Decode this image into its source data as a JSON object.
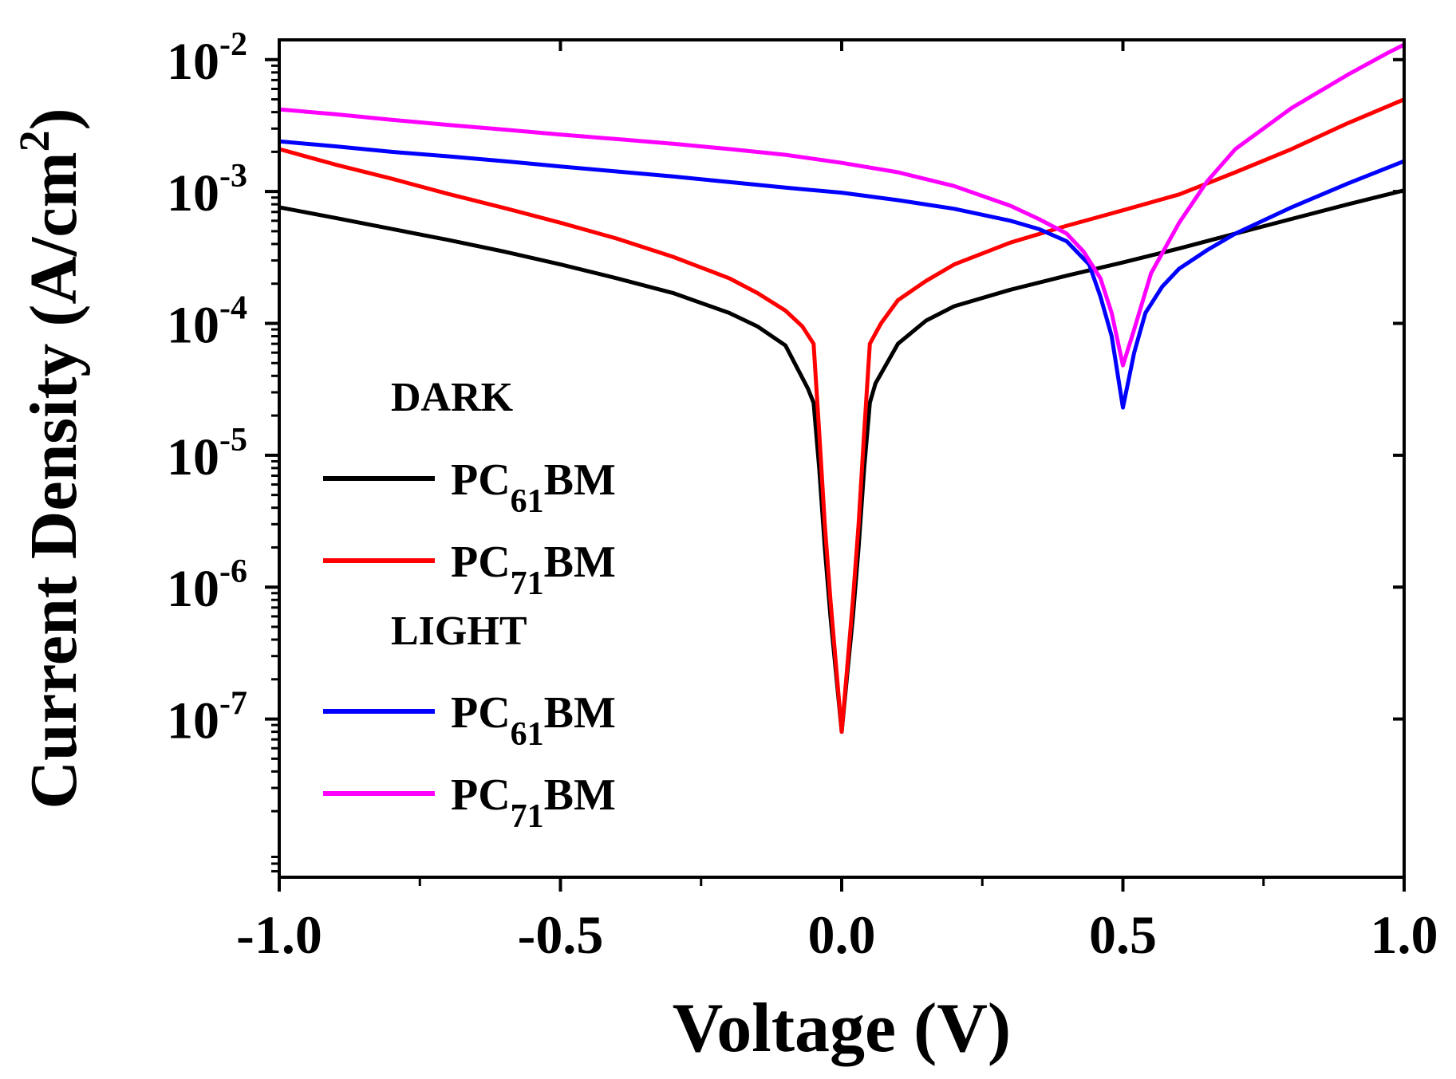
{
  "chart_data": {
    "type": "line",
    "xlabel": "Voltage (V)",
    "ylabel": {
      "prefix": "Current Density (A/cm",
      "sup": "2",
      "suffix": ")"
    },
    "y_scale": "log",
    "xlim": [
      -1.0,
      1.0
    ],
    "ylim_log10": [
      -8.2,
      -1.85
    ],
    "grid": false,
    "legend_position": "center-left",
    "x_ticks": [
      {
        "value": -1.0,
        "label": "-1.0"
      },
      {
        "value": -0.5,
        "label": "-0.5"
      },
      {
        "value": 0.0,
        "label": "0.0"
      },
      {
        "value": 0.5,
        "label": "0.5"
      },
      {
        "value": 1.0,
        "label": "1.0"
      }
    ],
    "y_ticks": [
      {
        "exp": -2,
        "base": "10",
        "sup": "-2"
      },
      {
        "exp": -3,
        "base": "10",
        "sup": "-3"
      },
      {
        "exp": -4,
        "base": "10",
        "sup": "-4"
      },
      {
        "exp": -5,
        "base": "10",
        "sup": "-5"
      },
      {
        "exp": -6,
        "base": "10",
        "sup": "-6"
      },
      {
        "exp": -7,
        "base": "10",
        "sup": "-7"
      }
    ],
    "legend": {
      "groups": [
        {
          "heading": "DARK",
          "items": [
            {
              "series": 0,
              "prefix": "PC",
              "sub": "61",
              "suffix": "BM"
            },
            {
              "series": 1,
              "prefix": "PC",
              "sub": "71",
              "suffix": "BM"
            }
          ]
        },
        {
          "heading": "LIGHT",
          "items": [
            {
              "series": 2,
              "prefix": "PC",
              "sub": "61",
              "suffix": "BM"
            },
            {
              "series": 3,
              "prefix": "PC",
              "sub": "71",
              "suffix": "BM"
            }
          ]
        }
      ]
    },
    "series": [
      {
        "color": "#000000",
        "points": [
          [
            -1.0,
            0.00076
          ],
          [
            -0.9,
            0.00063
          ],
          [
            -0.8,
            0.00052
          ],
          [
            -0.7,
            0.00043
          ],
          [
            -0.6,
            0.00035
          ],
          [
            -0.5,
            0.00028
          ],
          [
            -0.4,
            0.00022
          ],
          [
            -0.3,
            0.00017
          ],
          [
            -0.2,
            0.00012
          ],
          [
            -0.15,
            9.5e-05
          ],
          [
            -0.1,
            6.8e-05
          ],
          [
            -0.06,
            3.2e-05
          ],
          [
            -0.05,
            2.5e-05
          ],
          [
            -0.04,
            8e-06
          ],
          [
            -0.03,
            2e-06
          ],
          [
            -0.02,
            6e-07
          ],
          [
            -0.01,
            2.2e-07
          ],
          [
            0.0,
            8e-08
          ],
          [
            0.01,
            2.2e-07
          ],
          [
            0.02,
            6e-07
          ],
          [
            0.03,
            2e-06
          ],
          [
            0.04,
            8e-06
          ],
          [
            0.05,
            2.5e-05
          ],
          [
            0.06,
            3.5e-05
          ],
          [
            0.1,
            7e-05
          ],
          [
            0.15,
            0.000105
          ],
          [
            0.2,
            0.000135
          ],
          [
            0.3,
            0.00018
          ],
          [
            0.4,
            0.00023
          ],
          [
            0.5,
            0.00029
          ],
          [
            0.6,
            0.00037
          ],
          [
            0.7,
            0.00048
          ],
          [
            0.8,
            0.00062
          ],
          [
            0.9,
            0.0008
          ],
          [
            1.0,
            0.00102
          ]
        ]
      },
      {
        "color": "#ff0000",
        "points": [
          [
            -1.0,
            0.0021
          ],
          [
            -0.9,
            0.0016
          ],
          [
            -0.8,
            0.00125
          ],
          [
            -0.7,
            0.00096
          ],
          [
            -0.6,
            0.00075
          ],
          [
            -0.5,
            0.00058
          ],
          [
            -0.4,
            0.00044
          ],
          [
            -0.3,
            0.00032
          ],
          [
            -0.2,
            0.00022
          ],
          [
            -0.15,
            0.00017
          ],
          [
            -0.1,
            0.000125
          ],
          [
            -0.07,
            9.5e-05
          ],
          [
            -0.05,
            7e-05
          ],
          [
            -0.04,
            1.5e-05
          ],
          [
            -0.03,
            3e-06
          ],
          [
            -0.02,
            8e-07
          ],
          [
            -0.01,
            2.5e-07
          ],
          [
            0.0,
            8e-08
          ],
          [
            0.01,
            2.5e-07
          ],
          [
            0.02,
            8e-07
          ],
          [
            0.03,
            3e-06
          ],
          [
            0.04,
            1.5e-05
          ],
          [
            0.05,
            7e-05
          ],
          [
            0.07,
            0.0001
          ],
          [
            0.1,
            0.00015
          ],
          [
            0.15,
            0.00021
          ],
          [
            0.2,
            0.00028
          ],
          [
            0.3,
            0.00041
          ],
          [
            0.4,
            0.00055
          ],
          [
            0.5,
            0.00072
          ],
          [
            0.6,
            0.00095
          ],
          [
            0.7,
            0.0014
          ],
          [
            0.8,
            0.0021
          ],
          [
            0.9,
            0.0033
          ],
          [
            1.0,
            0.005
          ]
        ]
      },
      {
        "color": "#0000ff",
        "points": [
          [
            -1.0,
            0.0024
          ],
          [
            -0.9,
            0.0022
          ],
          [
            -0.8,
            0.002
          ],
          [
            -0.7,
            0.00185
          ],
          [
            -0.6,
            0.0017
          ],
          [
            -0.5,
            0.00155
          ],
          [
            -0.4,
            0.00142
          ],
          [
            -0.3,
            0.0013
          ],
          [
            -0.2,
            0.00118
          ],
          [
            -0.1,
            0.00107
          ],
          [
            0.0,
            0.00098
          ],
          [
            0.1,
            0.00086
          ],
          [
            0.2,
            0.00074
          ],
          [
            0.3,
            0.0006
          ],
          [
            0.35,
            0.00052
          ],
          [
            0.4,
            0.00042
          ],
          [
            0.44,
            0.00028
          ],
          [
            0.46,
            0.00016
          ],
          [
            0.48,
            8e-05
          ],
          [
            0.5,
            2.3e-05
          ],
          [
            0.52,
            6e-05
          ],
          [
            0.54,
            0.00012
          ],
          [
            0.57,
            0.00019
          ],
          [
            0.6,
            0.00026
          ],
          [
            0.65,
            0.00036
          ],
          [
            0.7,
            0.00048
          ],
          [
            0.8,
            0.00076
          ],
          [
            0.9,
            0.00115
          ],
          [
            1.0,
            0.0017
          ]
        ]
      },
      {
        "color": "#ff00ff",
        "points": [
          [
            -1.0,
            0.0042
          ],
          [
            -0.9,
            0.00385
          ],
          [
            -0.8,
            0.0035
          ],
          [
            -0.7,
            0.0032
          ],
          [
            -0.6,
            0.00295
          ],
          [
            -0.5,
            0.0027
          ],
          [
            -0.4,
            0.0025
          ],
          [
            -0.3,
            0.0023
          ],
          [
            -0.2,
            0.0021
          ],
          [
            -0.1,
            0.0019
          ],
          [
            0.0,
            0.00165
          ],
          [
            0.1,
            0.0014
          ],
          [
            0.2,
            0.0011
          ],
          [
            0.3,
            0.00078
          ],
          [
            0.35,
            0.00062
          ],
          [
            0.4,
            0.00048
          ],
          [
            0.43,
            0.00035
          ],
          [
            0.46,
            0.00022
          ],
          [
            0.48,
            0.00012
          ],
          [
            0.5,
            4.8e-05
          ],
          [
            0.52,
            9e-05
          ],
          [
            0.55,
            0.00024
          ],
          [
            0.6,
            0.00058
          ],
          [
            0.65,
            0.0012
          ],
          [
            0.7,
            0.0021
          ],
          [
            0.8,
            0.0043
          ],
          [
            0.9,
            0.0077
          ],
          [
            0.97,
            0.0112
          ],
          [
            1.0,
            0.013
          ]
        ]
      }
    ]
  }
}
